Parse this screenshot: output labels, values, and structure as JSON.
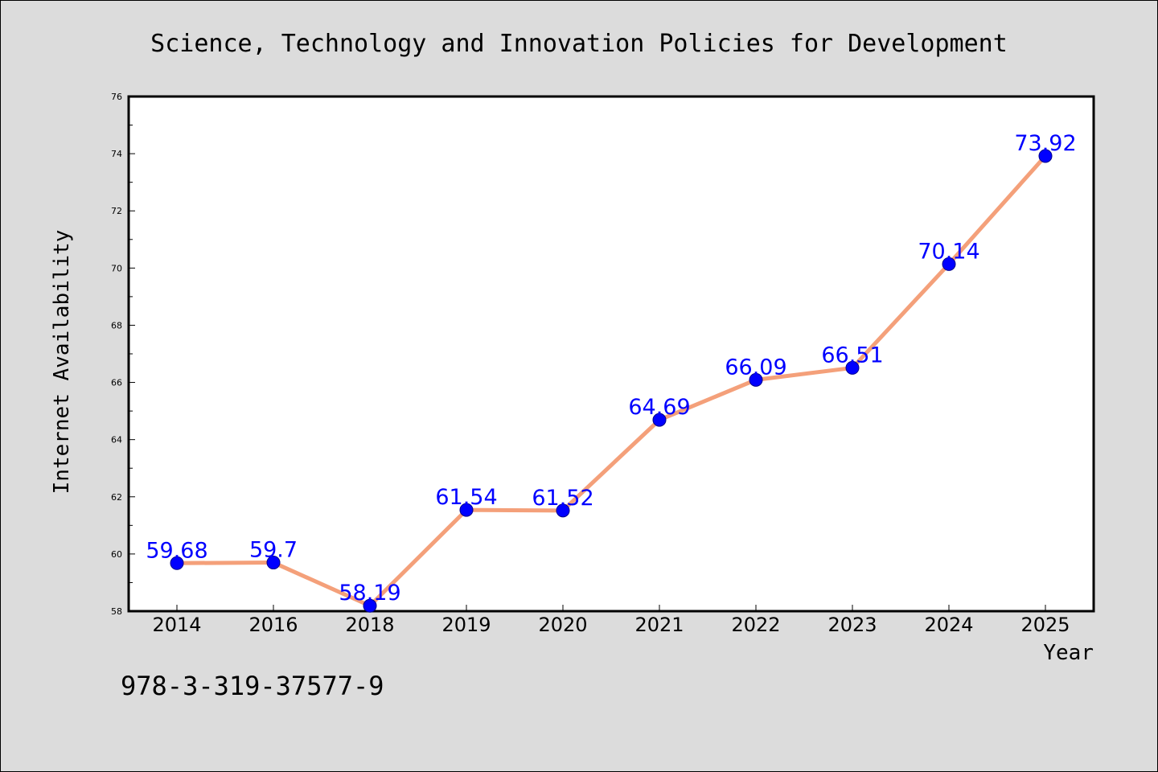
{
  "chart_data": {
    "type": "line",
    "title": "Science, Technology and Innovation Policies for Development",
    "xlabel": "Year",
    "ylabel": "Internet Availability",
    "categories": [
      "2014",
      "2016",
      "2018",
      "2019",
      "2020",
      "2021",
      "2022",
      "2023",
      "2024",
      "2025"
    ],
    "series": [
      {
        "values": [
          59.68,
          59.7,
          58.19,
          61.54,
          61.52,
          64.69,
          66.09,
          66.51,
          70.14,
          73.92
        ],
        "labels": [
          "59.68",
          "59.7",
          "58.19",
          "61.54",
          "61.52",
          "64.69",
          "66.09",
          "66.51",
          "70.14",
          "73.92"
        ]
      }
    ],
    "ylim": [
      58,
      76
    ],
    "yticks": [
      "58",
      "60",
      "62",
      "64",
      "66",
      "68",
      "70",
      "72",
      "74",
      "76"
    ],
    "grid": false,
    "colors": {
      "line": "#f4a07a",
      "marker": "#0000ff",
      "label": "#0000ff"
    }
  },
  "footer_text": "978-3-319-37577-9"
}
